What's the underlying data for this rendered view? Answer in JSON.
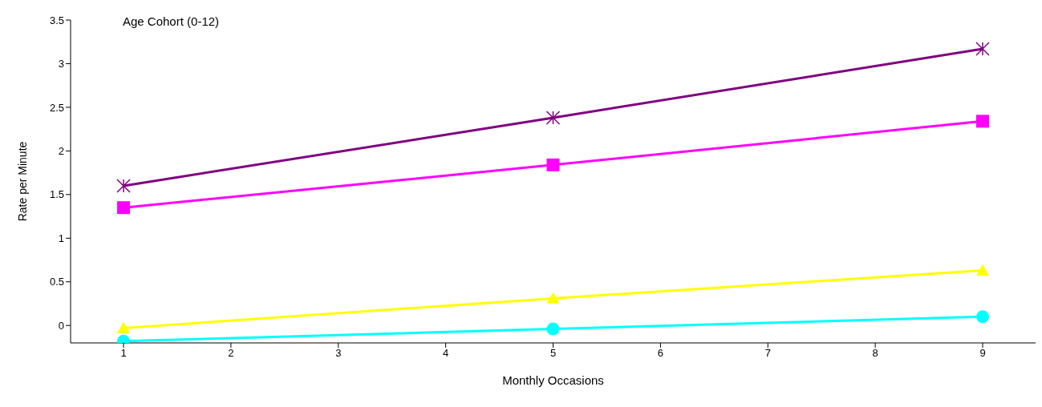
{
  "chart_data": {
    "type": "line",
    "xlabel": "Monthly Occasions",
    "ylabel": "Rate per Minute",
    "annotations": [
      "Age Cohort (0-12)"
    ],
    "categories": [
      "1",
      "2",
      "3",
      "4",
      "5",
      "6",
      "7",
      "8",
      "9"
    ],
    "series": [
      {
        "color": "#800080",
        "marker": "cross",
        "values": [
          1.6,
          null,
          null,
          null,
          2.38,
          null,
          null,
          null,
          3.17
        ]
      },
      {
        "color": "#ff00ff",
        "marker": "square",
        "values": [
          1.35,
          null,
          null,
          null,
          1.84,
          null,
          null,
          null,
          2.34
        ]
      },
      {
        "color": "#ffff00",
        "marker": "triangle",
        "values": [
          -0.03,
          null,
          null,
          null,
          0.31,
          null,
          null,
          null,
          0.63
        ]
      },
      {
        "color": "#00ffff",
        "marker": "circle",
        "values": [
          -0.18,
          null,
          null,
          null,
          -0.04,
          null,
          null,
          null,
          0.1
        ]
      }
    ],
    "ylim": [
      -0.2,
      3.5
    ],
    "yticks": [
      0,
      0.5,
      1,
      1.5,
      2,
      2.5,
      3,
      3.5
    ],
    "grid": false,
    "legend": false,
    "line_style": "solid"
  }
}
